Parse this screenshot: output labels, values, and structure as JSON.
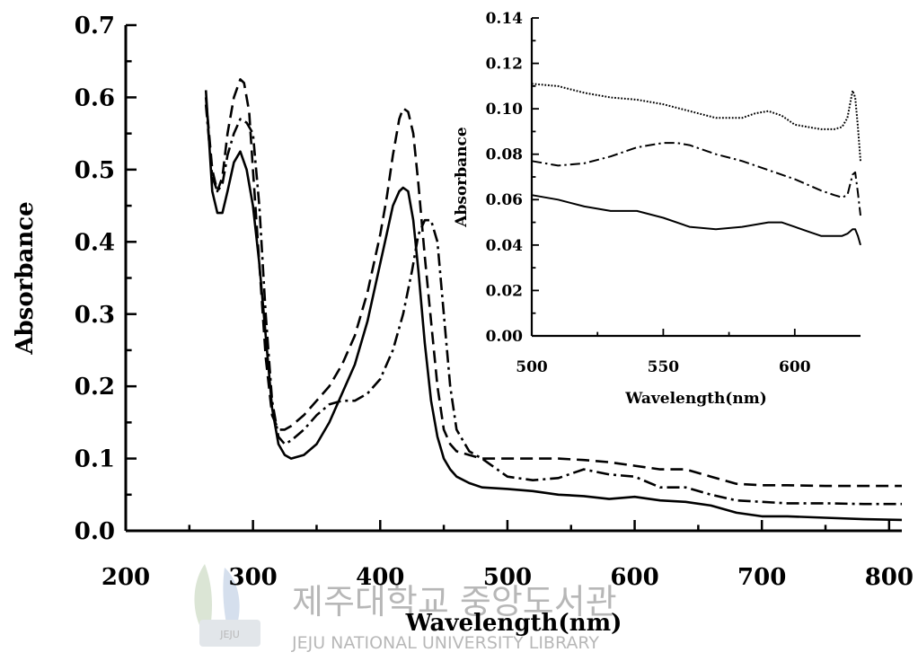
{
  "chart_data": [
    {
      "type": "line",
      "xlabel": "Wavelength(nm)",
      "ylabel": "Absorbance",
      "xlim": [
        200,
        810
      ],
      "ylim": [
        0,
        0.7
      ],
      "xticks": [
        "200",
        "300",
        "400",
        "500",
        "600",
        "700",
        "800"
      ],
      "yticks": [
        "0.0",
        "0.1",
        "0.2",
        "0.3",
        "0.4",
        "0.5",
        "0.6",
        "0.7"
      ],
      "grid": false,
      "legend": "none",
      "series": [
        {
          "style": "solid",
          "x": [
            263,
            268,
            272,
            276,
            280,
            285,
            290,
            295,
            300,
            305,
            310,
            315,
            320,
            325,
            330,
            340,
            350,
            360,
            370,
            380,
            390,
            400,
            405,
            410,
            415,
            418,
            422,
            426,
            430,
            435,
            440,
            445,
            450,
            455,
            460,
            470,
            480,
            500,
            520,
            540,
            560,
            580,
            600,
            620,
            640,
            660,
            680,
            700,
            720,
            750,
            780,
            810
          ],
          "y": [
            0.61,
            0.47,
            0.44,
            0.44,
            0.47,
            0.51,
            0.525,
            0.5,
            0.45,
            0.37,
            0.27,
            0.17,
            0.12,
            0.105,
            0.1,
            0.105,
            0.12,
            0.15,
            0.19,
            0.23,
            0.29,
            0.37,
            0.41,
            0.45,
            0.47,
            0.475,
            0.47,
            0.43,
            0.36,
            0.26,
            0.18,
            0.13,
            0.1,
            0.085,
            0.075,
            0.066,
            0.06,
            0.058,
            0.055,
            0.05,
            0.048,
            0.044,
            0.047,
            0.042,
            0.04,
            0.035,
            0.025,
            0.02,
            0.02,
            0.018,
            0.016,
            0.015
          ]
        },
        {
          "style": "dashed",
          "x": [
            263,
            268,
            272,
            276,
            280,
            285,
            290,
            293,
            297,
            300,
            305,
            310,
            315,
            320,
            325,
            330,
            340,
            350,
            360,
            370,
            380,
            390,
            400,
            405,
            410,
            415,
            418,
            422,
            426,
            430,
            435,
            440,
            445,
            450,
            455,
            460,
            470,
            480,
            500,
            520,
            540,
            560,
            580,
            600,
            620,
            640,
            660,
            680,
            700,
            720,
            750,
            780,
            810
          ],
          "y": [
            0.6,
            0.5,
            0.47,
            0.49,
            0.55,
            0.6,
            0.625,
            0.62,
            0.58,
            0.5,
            0.37,
            0.24,
            0.16,
            0.14,
            0.14,
            0.145,
            0.16,
            0.18,
            0.2,
            0.23,
            0.27,
            0.33,
            0.41,
            0.46,
            0.52,
            0.57,
            0.585,
            0.58,
            0.55,
            0.48,
            0.38,
            0.29,
            0.2,
            0.14,
            0.12,
            0.11,
            0.105,
            0.1,
            0.1,
            0.1,
            0.1,
            0.098,
            0.095,
            0.09,
            0.085,
            0.085,
            0.075,
            0.065,
            0.063,
            0.063,
            0.062,
            0.062,
            0.062
          ]
        },
        {
          "style": "dash-dot",
          "x": [
            263,
            268,
            272,
            276,
            280,
            285,
            290,
            295,
            300,
            305,
            310,
            315,
            320,
            325,
            330,
            340,
            350,
            360,
            370,
            380,
            390,
            400,
            410,
            418,
            425,
            430,
            435,
            440,
            445,
            450,
            455,
            460,
            470,
            480,
            500,
            520,
            540,
            560,
            580,
            600,
            620,
            640,
            660,
            680,
            700,
            720,
            750,
            780,
            810
          ],
          "y": [
            0.59,
            0.49,
            0.47,
            0.48,
            0.52,
            0.55,
            0.57,
            0.565,
            0.55,
            0.45,
            0.3,
            0.18,
            0.13,
            0.12,
            0.125,
            0.14,
            0.16,
            0.175,
            0.18,
            0.18,
            0.19,
            0.21,
            0.25,
            0.3,
            0.36,
            0.41,
            0.43,
            0.43,
            0.4,
            0.3,
            0.2,
            0.14,
            0.11,
            0.1,
            0.075,
            0.07,
            0.073,
            0.085,
            0.078,
            0.075,
            0.06,
            0.06,
            0.05,
            0.042,
            0.04,
            0.038,
            0.038,
            0.037,
            0.037
          ]
        }
      ]
    },
    {
      "type": "line",
      "xlabel": "Wavelength(nm)",
      "ylabel": "Absorbance",
      "xlim": [
        500,
        625
      ],
      "ylim": [
        0,
        0.14
      ],
      "xticks": [
        "500",
        "550",
        "600"
      ],
      "yticks": [
        "0.00",
        "0.02",
        "0.04",
        "0.06",
        "0.08",
        "0.10",
        "0.12",
        "0.14"
      ],
      "grid": false,
      "legend": "none",
      "series": [
        {
          "style": "dotted",
          "x": [
            500,
            510,
            520,
            530,
            540,
            550,
            560,
            570,
            580,
            585,
            590,
            595,
            600,
            605,
            610,
            615,
            618,
            620,
            622,
            623,
            624,
            625
          ],
          "y": [
            0.111,
            0.11,
            0.107,
            0.105,
            0.104,
            0.102,
            0.099,
            0.096,
            0.096,
            0.098,
            0.099,
            0.097,
            0.093,
            0.092,
            0.091,
            0.091,
            0.092,
            0.096,
            0.108,
            0.105,
            0.092,
            0.077
          ]
        },
        {
          "style": "dash-dot",
          "x": [
            500,
            505,
            510,
            520,
            530,
            540,
            550,
            555,
            560,
            570,
            580,
            590,
            600,
            610,
            615,
            618,
            620,
            622,
            623,
            624,
            625
          ],
          "y": [
            0.077,
            0.076,
            0.075,
            0.076,
            0.079,
            0.083,
            0.085,
            0.085,
            0.084,
            0.08,
            0.077,
            0.073,
            0.069,
            0.064,
            0.062,
            0.061,
            0.062,
            0.071,
            0.072,
            0.063,
            0.053
          ]
        },
        {
          "style": "solid",
          "x": [
            500,
            510,
            520,
            530,
            540,
            550,
            560,
            570,
            580,
            590,
            595,
            600,
            605,
            610,
            615,
            618,
            620,
            622,
            623,
            624,
            625
          ],
          "y": [
            0.062,
            0.06,
            0.057,
            0.055,
            0.055,
            0.052,
            0.048,
            0.047,
            0.048,
            0.05,
            0.05,
            0.048,
            0.046,
            0.044,
            0.044,
            0.044,
            0.045,
            0.047,
            0.047,
            0.044,
            0.04
          ]
        }
      ]
    }
  ],
  "watermark": {
    "text_korean": "제주대학교 중앙도서관",
    "text_english": "JEJU NATIONAL UNIVERSITY LIBRARY",
    "emblem_text": "JEJU"
  }
}
